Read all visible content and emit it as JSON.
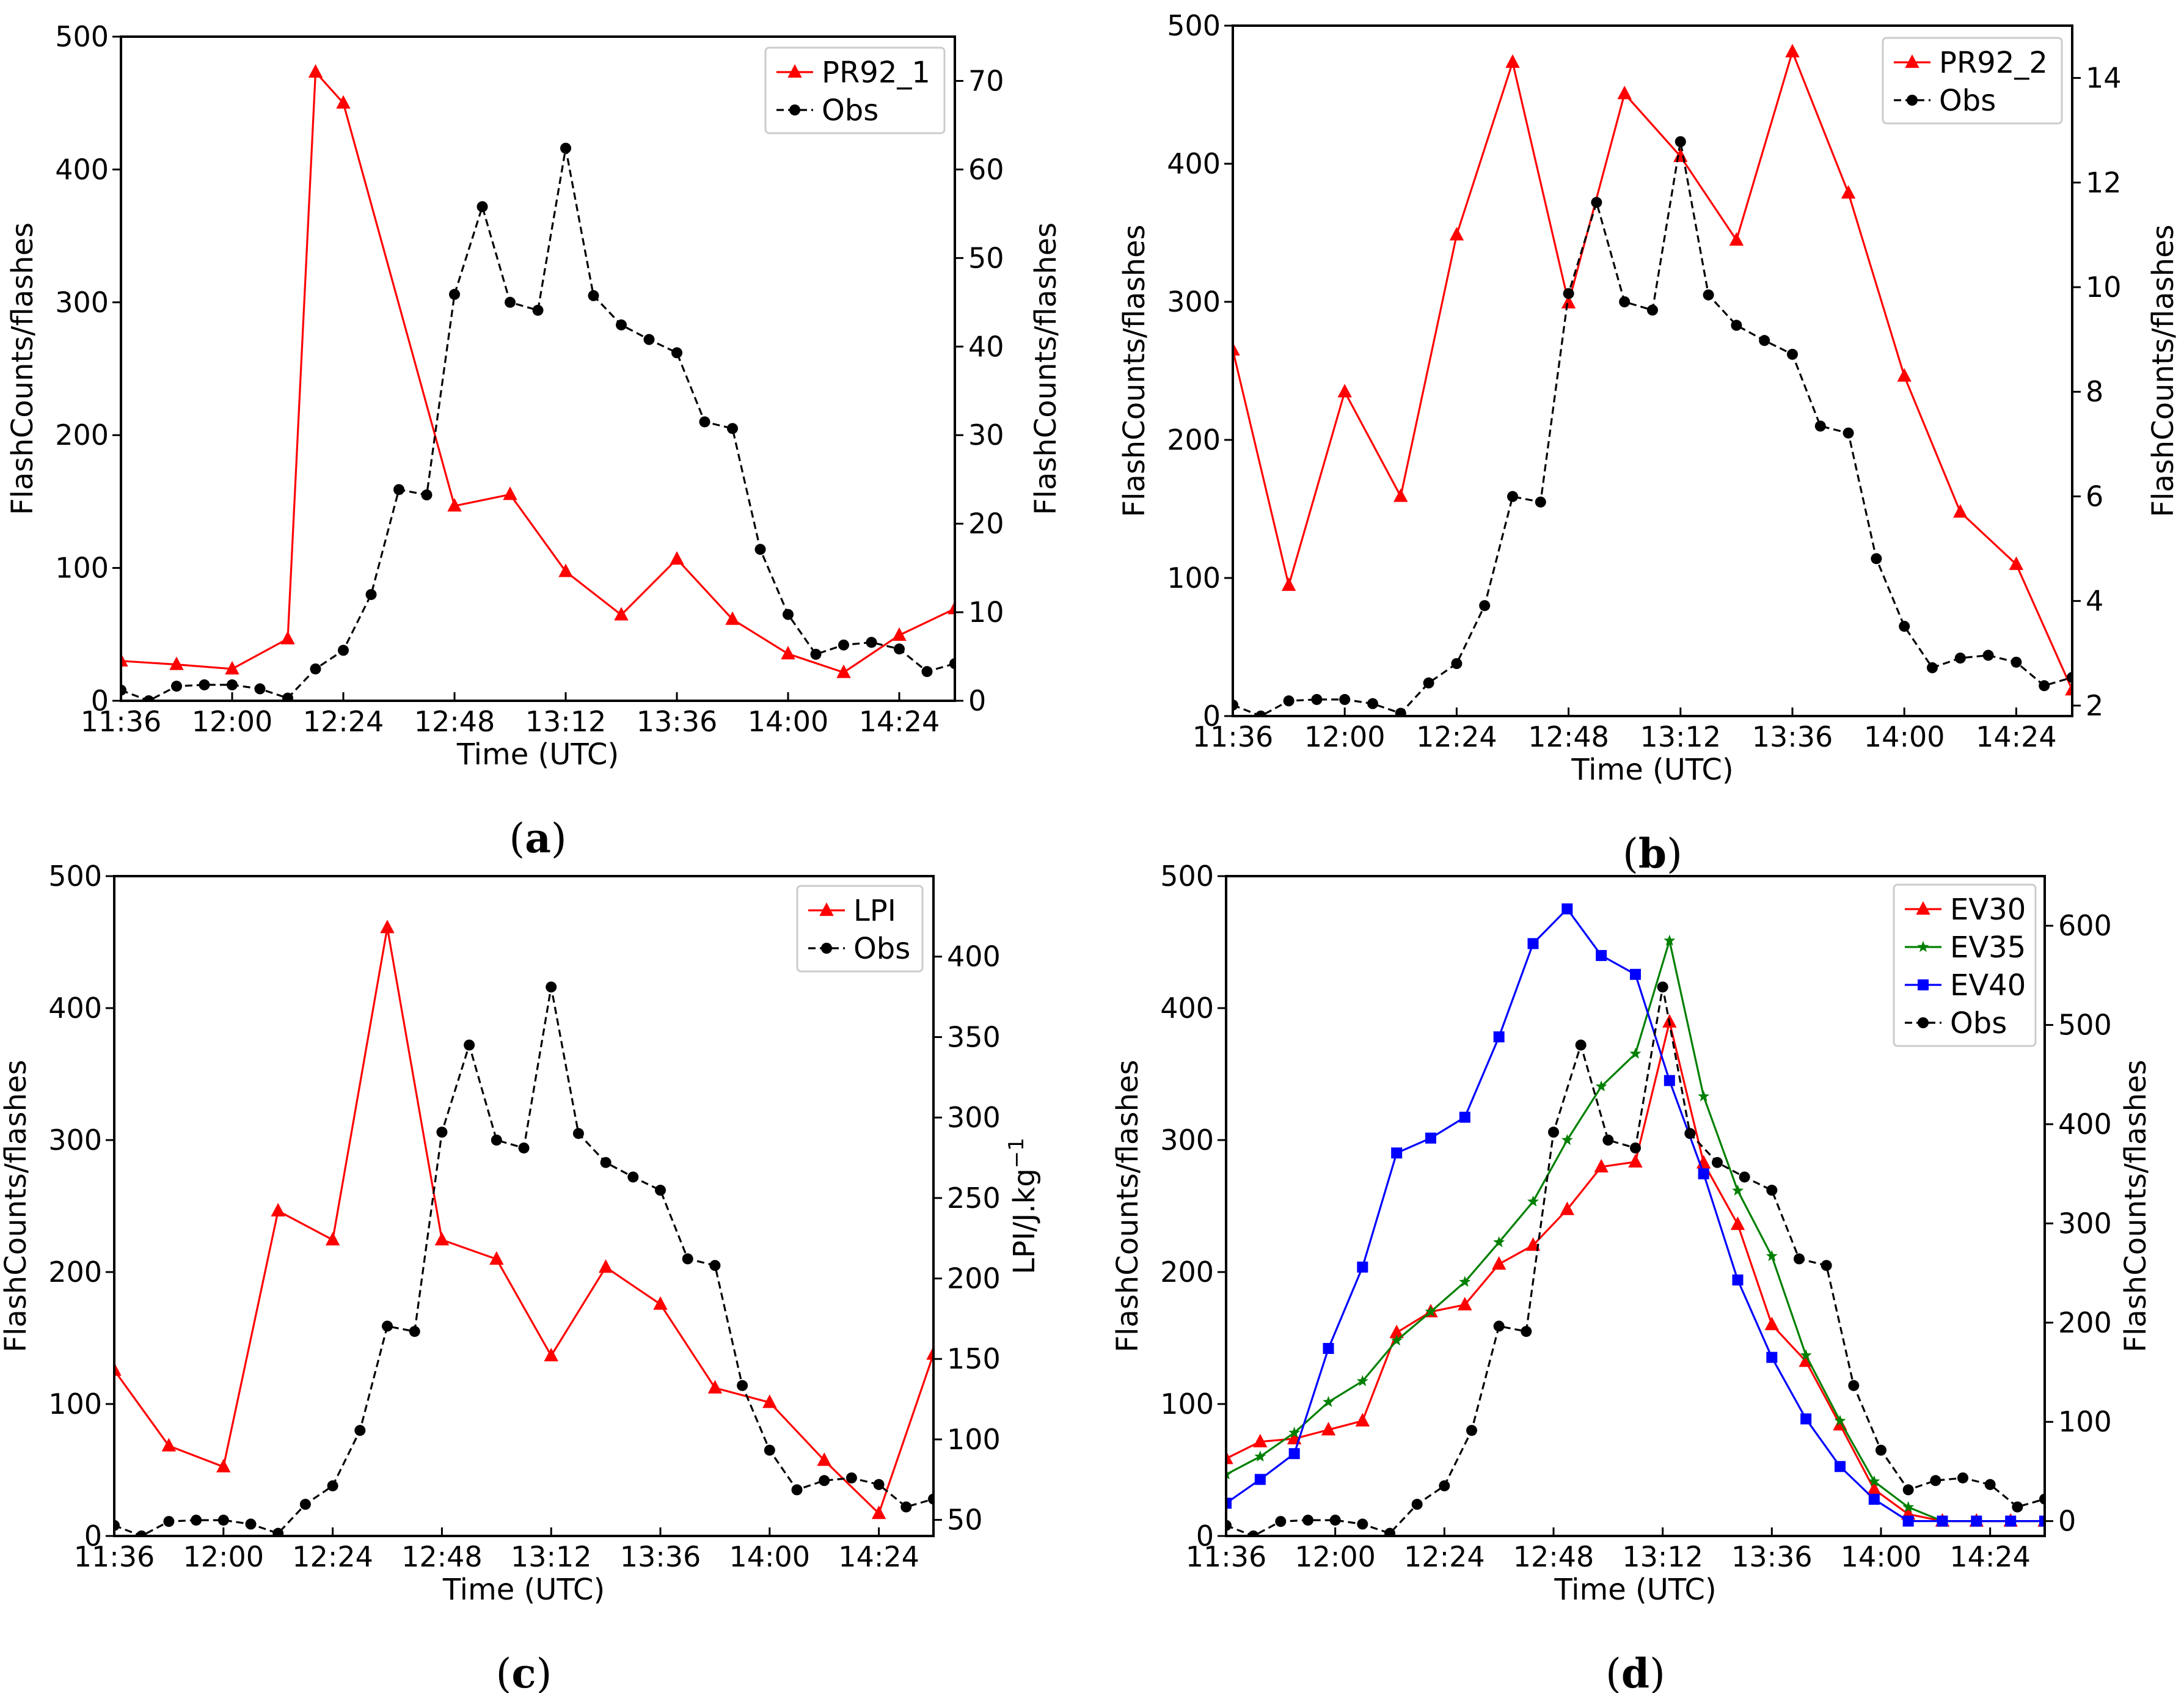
{
  "chart_data": [
    {
      "id": "a",
      "type": "line",
      "panel_label": "a",
      "xlabel": "Time (UTC)",
      "ylabel_left": "FlashCounts/flashes",
      "ylabel_right": "FlashCounts/flashes",
      "ylabel_right_superscript": "",
      "ylim_left": [
        0,
        500
      ],
      "ylim_right": [
        0,
        75
      ],
      "xlim": [
        0,
        180
      ],
      "x_ticks": [
        0,
        24,
        48,
        72,
        96,
        120,
        144,
        168
      ],
      "x_tick_labels": [
        "11:36",
        "12:00",
        "12:24",
        "12:48",
        "13:12",
        "13:36",
        "14:00",
        "14:24"
      ],
      "y_ticks_left": [
        0,
        100,
        200,
        300,
        400,
        500
      ],
      "y_ticks_right": [
        0,
        10,
        20,
        30,
        40,
        50,
        60,
        70
      ],
      "legend": [
        {
          "name": "PR92_1",
          "color": "#ff0000",
          "marker": "triangle",
          "dash": "solid"
        },
        {
          "name": "Obs",
          "color": "#000000",
          "marker": "circle",
          "dash": "dashed"
        }
      ],
      "series": [
        {
          "name": "PR92_1",
          "axis": "right",
          "color": "#ff0000",
          "marker": "triangle",
          "dash": "solid",
          "x": [
            0,
            12,
            24,
            36,
            42,
            48,
            72,
            84,
            96,
            108,
            120,
            132,
            144,
            156,
            168,
            180
          ],
          "values": [
            4.5,
            4.1,
            3.6,
            7.0,
            71.0,
            67.5,
            22.0,
            23.3,
            14.6,
            9.7,
            16.0,
            9.2,
            5.3,
            3.2,
            7.4,
            10.4
          ]
        },
        {
          "name": "Obs",
          "axis": "left",
          "color": "#000000",
          "marker": "circle",
          "dash": "dashed",
          "x": [
            0,
            6,
            12,
            18,
            24,
            30,
            36,
            42,
            48,
            54,
            60,
            66,
            72,
            78,
            84,
            90,
            96,
            102,
            108,
            114,
            120,
            126,
            132,
            138,
            144,
            150,
            156,
            162,
            168,
            174,
            180
          ],
          "values": [
            8,
            0,
            11,
            12,
            12,
            9,
            2,
            24,
            38,
            80,
            159,
            155,
            306,
            372,
            300,
            294,
            416,
            305,
            283,
            272,
            262,
            210,
            205,
            114,
            65,
            35,
            42,
            44,
            39,
            22,
            28
          ]
        }
      ]
    },
    {
      "id": "b",
      "type": "line",
      "panel_label": "b",
      "xlabel": "Time (UTC)",
      "ylabel_left": "FlashCounts/flashes",
      "ylabel_right": "FlashCounts/flashes",
      "ylabel_right_superscript": "",
      "ylim_left": [
        0,
        500
      ],
      "ylim_right": [
        1.8,
        15
      ],
      "xlim": [
        0,
        180
      ],
      "x_ticks": [
        0,
        24,
        48,
        72,
        96,
        120,
        144,
        168
      ],
      "x_tick_labels": [
        "11:36",
        "12:00",
        "12:24",
        "12:48",
        "13:12",
        "13:36",
        "14:00",
        "14:24"
      ],
      "y_ticks_left": [
        0,
        100,
        200,
        300,
        400,
        500
      ],
      "y_ticks_right": [
        2,
        4,
        6,
        8,
        10,
        12,
        14
      ],
      "legend": [
        {
          "name": "PR92_2",
          "color": "#ff0000",
          "marker": "triangle",
          "dash": "solid"
        },
        {
          "name": "Obs",
          "color": "#000000",
          "marker": "circle",
          "dash": "dashed"
        }
      ],
      "series": [
        {
          "name": "PR92_2",
          "axis": "right",
          "color": "#ff0000",
          "marker": "triangle",
          "dash": "solid",
          "x": [
            0,
            12,
            24,
            36,
            48,
            60,
            72,
            84,
            96,
            108,
            120,
            132,
            144,
            156,
            168,
            180
          ],
          "values": [
            8.8,
            4.3,
            8.0,
            6.0,
            11.0,
            14.3,
            9.7,
            13.7,
            12.5,
            10.9,
            14.5,
            11.8,
            8.3,
            5.7,
            4.7,
            2.3
          ]
        },
        {
          "name": "Obs",
          "axis": "left",
          "color": "#000000",
          "marker": "circle",
          "dash": "dashed",
          "x": [
            0,
            6,
            12,
            18,
            24,
            30,
            36,
            42,
            48,
            54,
            60,
            66,
            72,
            78,
            84,
            90,
            96,
            102,
            108,
            114,
            120,
            126,
            132,
            138,
            144,
            150,
            156,
            162,
            168,
            174,
            180
          ],
          "values": [
            8,
            0,
            11,
            12,
            12,
            9,
            2,
            24,
            38,
            80,
            159,
            155,
            306,
            372,
            300,
            294,
            416,
            305,
            283,
            272,
            262,
            210,
            205,
            114,
            65,
            35,
            42,
            44,
            39,
            22,
            28
          ]
        }
      ]
    },
    {
      "id": "c",
      "type": "line",
      "panel_label": "c",
      "xlabel": "Time (UTC)",
      "ylabel_left": "FlashCounts/flashes",
      "ylabel_right": "LPI/J.kg",
      "ylabel_right_superscript": "−1",
      "ylim_left": [
        0,
        500
      ],
      "ylim_right": [
        40,
        450
      ],
      "xlim": [
        0,
        180
      ],
      "x_ticks": [
        0,
        24,
        48,
        72,
        96,
        120,
        144,
        168
      ],
      "x_tick_labels": [
        "11:36",
        "12:00",
        "12:24",
        "12:48",
        "13:12",
        "13:36",
        "14:00",
        "14:24"
      ],
      "y_ticks_left": [
        0,
        100,
        200,
        300,
        400,
        500
      ],
      "y_ticks_right": [
        50,
        100,
        150,
        200,
        250,
        300,
        350,
        400
      ],
      "legend": [
        {
          "name": "LPI",
          "color": "#ff0000",
          "marker": "triangle",
          "dash": "solid"
        },
        {
          "name": "Obs",
          "color": "#000000",
          "marker": "circle",
          "dash": "dashed"
        }
      ],
      "series": [
        {
          "name": "LPI",
          "axis": "right",
          "color": "#ff0000",
          "marker": "triangle",
          "dash": "solid",
          "x": [
            0,
            12,
            24,
            36,
            48,
            60,
            72,
            84,
            96,
            108,
            120,
            132,
            144,
            156,
            168,
            180
          ],
          "values": [
            143,
            96,
            83,
            242,
            224,
            418,
            224,
            212,
            152,
            207,
            184,
            132,
            123,
            87,
            54,
            153
          ]
        },
        {
          "name": "Obs",
          "axis": "left",
          "color": "#000000",
          "marker": "circle",
          "dash": "dashed",
          "x": [
            0,
            6,
            12,
            18,
            24,
            30,
            36,
            42,
            48,
            54,
            60,
            66,
            72,
            78,
            84,
            90,
            96,
            102,
            108,
            114,
            120,
            126,
            132,
            138,
            144,
            150,
            156,
            162,
            168,
            174,
            180
          ],
          "values": [
            8,
            0,
            11,
            12,
            12,
            9,
            2,
            24,
            38,
            80,
            159,
            155,
            306,
            372,
            300,
            294,
            416,
            305,
            283,
            272,
            262,
            210,
            205,
            114,
            65,
            35,
            42,
            44,
            39,
            22,
            28
          ]
        }
      ]
    },
    {
      "id": "d",
      "type": "line",
      "panel_label": "d",
      "xlabel": "Time (UTC)",
      "ylabel_left": "FlashCounts/flashes",
      "ylabel_right": "FlashCounts/flashes",
      "ylabel_right_superscript": "",
      "ylim_left": [
        0,
        500
      ],
      "ylim_right": [
        -15,
        650
      ],
      "xlim": [
        0,
        180
      ],
      "x_ticks": [
        0,
        24,
        48,
        72,
        96,
        120,
        144,
        168
      ],
      "x_tick_labels": [
        "11:36",
        "12:00",
        "12:24",
        "12:48",
        "13:12",
        "13:36",
        "14:00",
        "14:24"
      ],
      "y_ticks_left": [
        0,
        100,
        200,
        300,
        400,
        500
      ],
      "y_ticks_right": [
        0,
        100,
        200,
        300,
        400,
        500,
        600
      ],
      "legend": [
        {
          "name": "EV30",
          "color": "#ff0000",
          "marker": "triangle",
          "dash": "solid"
        },
        {
          "name": "EV35",
          "color": "#008000",
          "marker": "star",
          "dash": "solid"
        },
        {
          "name": "EV40",
          "color": "#0000ff",
          "marker": "square",
          "dash": "solid"
        },
        {
          "name": "Obs",
          "color": "#000000",
          "marker": "circle",
          "dash": "dashed"
        }
      ],
      "series": [
        {
          "name": "EV30",
          "axis": "right",
          "color": "#ff0000",
          "marker": "triangle",
          "dash": "solid",
          "x": [
            0,
            7.5,
            15,
            22.5,
            30,
            37.5,
            45,
            52.5,
            60,
            67.5,
            75,
            82.5,
            90,
            97.5,
            105,
            112.5,
            120,
            127.5,
            135,
            142.5,
            150,
            157.5,
            165,
            172.5,
            180
          ],
          "values": [
            63,
            80,
            83,
            92,
            101,
            190,
            211,
            218,
            259,
            278,
            314,
            357,
            362,
            503,
            361,
            299,
            198,
            161,
            97,
            32,
            7,
            0,
            0,
            0,
            0
          ]
        },
        {
          "name": "EV35",
          "axis": "right",
          "color": "#008000",
          "marker": "star",
          "dash": "solid",
          "x": [
            0,
            7.5,
            15,
            22.5,
            30,
            37.5,
            45,
            52.5,
            60,
            67.5,
            75,
            82.5,
            90,
            97.5,
            105,
            112.5,
            120,
            127.5,
            135,
            142.5,
            150,
            157.5,
            165,
            172.5,
            180
          ],
          "values": [
            47,
            65,
            89,
            120,
            141,
            182,
            211,
            241,
            281,
            322,
            384,
            438,
            471,
            585,
            428,
            333,
            267,
            167,
            101,
            40,
            14,
            0,
            0,
            0,
            0
          ]
        },
        {
          "name": "EV40",
          "axis": "right",
          "color": "#0000ff",
          "marker": "square",
          "dash": "solid",
          "x": [
            0,
            7.5,
            15,
            22.5,
            30,
            37.5,
            45,
            52.5,
            60,
            67.5,
            75,
            82.5,
            90,
            97.5,
            105,
            112.5,
            120,
            127.5,
            135,
            142.5,
            150,
            157.5,
            165,
            172.5,
            180
          ],
          "values": [
            18,
            42,
            68,
            174,
            256,
            371,
            386,
            407,
            488,
            582,
            617,
            570,
            551,
            444,
            350,
            243,
            165,
            103,
            55,
            22,
            0,
            0,
            0,
            0,
            0
          ]
        },
        {
          "name": "Obs",
          "axis": "left",
          "color": "#000000",
          "marker": "circle",
          "dash": "dashed",
          "x": [
            0,
            6,
            12,
            18,
            24,
            30,
            36,
            42,
            48,
            54,
            60,
            66,
            72,
            78,
            84,
            90,
            96,
            102,
            108,
            114,
            120,
            126,
            132,
            138,
            144,
            150,
            156,
            162,
            168,
            174,
            180
          ],
          "values": [
            8,
            0,
            11,
            12,
            12,
            9,
            2,
            24,
            38,
            80,
            159,
            155,
            306,
            372,
            300,
            294,
            416,
            305,
            283,
            272,
            262,
            210,
            205,
            114,
            65,
            35,
            42,
            44,
            39,
            22,
            28
          ]
        }
      ]
    }
  ]
}
